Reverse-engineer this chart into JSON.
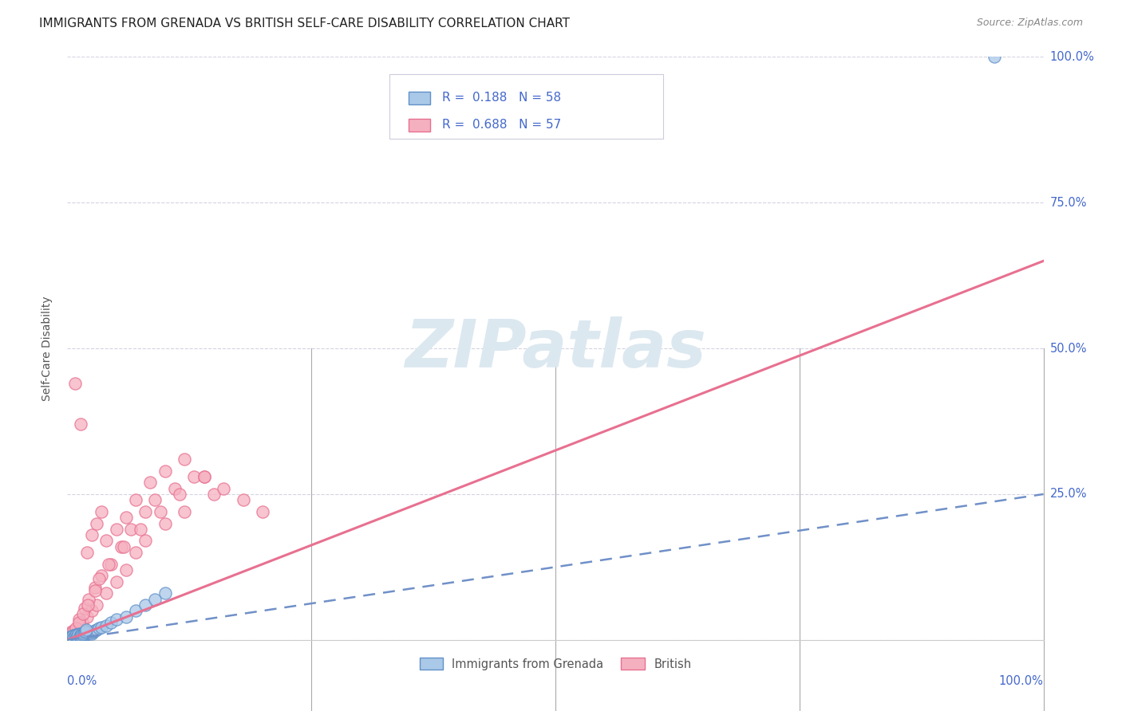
{
  "title": "IMMIGRANTS FROM GRENADA VS BRITISH SELF-CARE DISABILITY CORRELATION CHART",
  "source": "Source: ZipAtlas.com",
  "ylabel": "Self-Care Disability",
  "ytick_labels": [
    "0.0%",
    "25.0%",
    "50.0%",
    "75.0%",
    "100.0%"
  ],
  "ytick_values": [
    0,
    25,
    50,
    75,
    100
  ],
  "xlim": [
    0,
    100
  ],
  "ylim": [
    0,
    100
  ],
  "r_blue": 0.188,
  "n_blue": 58,
  "r_pink": 0.688,
  "n_pink": 57,
  "color_blue_fill": "#aac8e8",
  "color_pink_fill": "#f5b0c0",
  "color_blue_edge": "#6090c8",
  "color_pink_edge": "#e87090",
  "color_blue_line": "#7090c8",
  "color_pink_line": "#e87090",
  "color_axis_text": "#4468cc",
  "watermark_text": "ZIPatlas",
  "watermark_color": "#dce8f0",
  "background_color": "#ffffff",
  "grid_color": "#d0d0e0",
  "title_fontsize": 11,
  "note_fontsize": 9,
  "scatter_blue_x": [
    0.2,
    0.3,
    0.4,
    0.5,
    0.6,
    0.7,
    0.8,
    0.9,
    1.0,
    1.1,
    1.2,
    1.3,
    1.4,
    1.5,
    1.6,
    1.7,
    1.8,
    1.9,
    2.0,
    2.1,
    2.2,
    2.3,
    2.4,
    2.5,
    2.6,
    2.7,
    2.8,
    3.0,
    3.2,
    3.5,
    4.0,
    4.5,
    0.15,
    0.25,
    0.35,
    0.45,
    0.55,
    0.65,
    0.75,
    0.85,
    0.95,
    1.05,
    1.15,
    1.25,
    1.35,
    1.45,
    1.55,
    1.65,
    1.75,
    1.85,
    1.95,
    5.0,
    6.0,
    7.0,
    8.0,
    9.0,
    10.0,
    95.0
  ],
  "scatter_blue_y": [
    0.3,
    0.5,
    0.4,
    0.6,
    0.8,
    0.5,
    0.7,
    0.9,
    0.6,
    0.8,
    1.0,
    0.7,
    0.9,
    1.1,
    0.8,
    1.0,
    1.2,
    0.9,
    1.1,
    1.3,
    1.0,
    1.2,
    1.4,
    1.1,
    1.3,
    1.5,
    1.6,
    1.8,
    2.0,
    2.2,
    2.5,
    3.0,
    0.2,
    0.4,
    0.3,
    0.5,
    0.7,
    0.4,
    0.6,
    0.8,
    0.5,
    0.7,
    0.9,
    0.6,
    0.8,
    1.0,
    0.9,
    1.1,
    1.3,
    1.5,
    1.7,
    3.5,
    4.0,
    5.0,
    6.0,
    7.0,
    8.0,
    100.0
  ],
  "scatter_pink_x": [
    0.5,
    1.0,
    1.5,
    2.0,
    2.5,
    3.0,
    4.0,
    5.0,
    6.0,
    7.0,
    8.0,
    10.0,
    12.0,
    15.0,
    1.2,
    1.8,
    2.2,
    2.8,
    3.5,
    4.5,
    5.5,
    6.5,
    8.0,
    9.0,
    11.0,
    13.0,
    0.8,
    1.4,
    2.0,
    2.5,
    3.0,
    3.5,
    4.0,
    5.0,
    6.0,
    7.0,
    8.5,
    10.0,
    12.0,
    14.0,
    16.0,
    18.0,
    20.0,
    0.3,
    0.6,
    0.9,
    1.2,
    1.6,
    2.1,
    2.8,
    3.2,
    4.2,
    5.8,
    7.5,
    9.5,
    11.5,
    14.0
  ],
  "scatter_pink_y": [
    1.5,
    2.0,
    3.0,
    4.0,
    5.0,
    6.0,
    8.0,
    10.0,
    12.0,
    15.0,
    17.0,
    20.0,
    22.0,
    25.0,
    3.5,
    5.5,
    7.0,
    9.0,
    11.0,
    13.0,
    16.0,
    19.0,
    22.0,
    24.0,
    26.0,
    28.0,
    44.0,
    37.0,
    15.0,
    18.0,
    20.0,
    22.0,
    17.0,
    19.0,
    21.0,
    24.0,
    27.0,
    29.0,
    31.0,
    28.0,
    26.0,
    24.0,
    22.0,
    1.0,
    1.5,
    2.0,
    3.0,
    4.5,
    6.0,
    8.5,
    10.5,
    13.0,
    16.0,
    19.0,
    22.0,
    25.0,
    28.0
  ],
  "pink_line_x": [
    0,
    100
  ],
  "pink_line_y": [
    0,
    65
  ],
  "blue_line_x": [
    0,
    100
  ],
  "blue_line_y": [
    0,
    25
  ]
}
